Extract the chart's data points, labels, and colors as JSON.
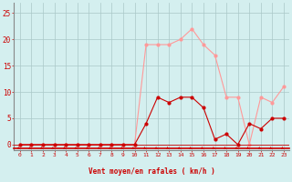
{
  "x": [
    0,
    1,
    2,
    3,
    4,
    5,
    6,
    7,
    8,
    9,
    10,
    11,
    12,
    13,
    14,
    15,
    16,
    17,
    18,
    19,
    20,
    21,
    22,
    23
  ],
  "wind_avg": [
    0,
    0,
    0,
    0,
    0,
    0,
    0,
    0,
    0,
    0,
    0,
    4,
    9,
    8,
    9,
    9,
    7,
    1,
    2,
    0,
    4,
    3,
    5,
    5
  ],
  "wind_gust": [
    0,
    0,
    0,
    0,
    0,
    0,
    0,
    0,
    0,
    0,
    0,
    19,
    19,
    19,
    20,
    22,
    19,
    17,
    9,
    9,
    0,
    9,
    8,
    11
  ],
  "bg_color": "#d4efef",
  "grid_color": "#aac8c8",
  "avg_color": "#cc0000",
  "gust_color": "#ff9999",
  "xlabel": "Vent moyen/en rafales ( km/h )",
  "xlabel_color": "#cc0000",
  "ylabel_ticks": [
    0,
    5,
    10,
    15,
    20,
    25
  ],
  "xlim": [
    -0.5,
    23.5
  ],
  "ylim": [
    -1,
    27
  ],
  "spine_color": "#888888"
}
